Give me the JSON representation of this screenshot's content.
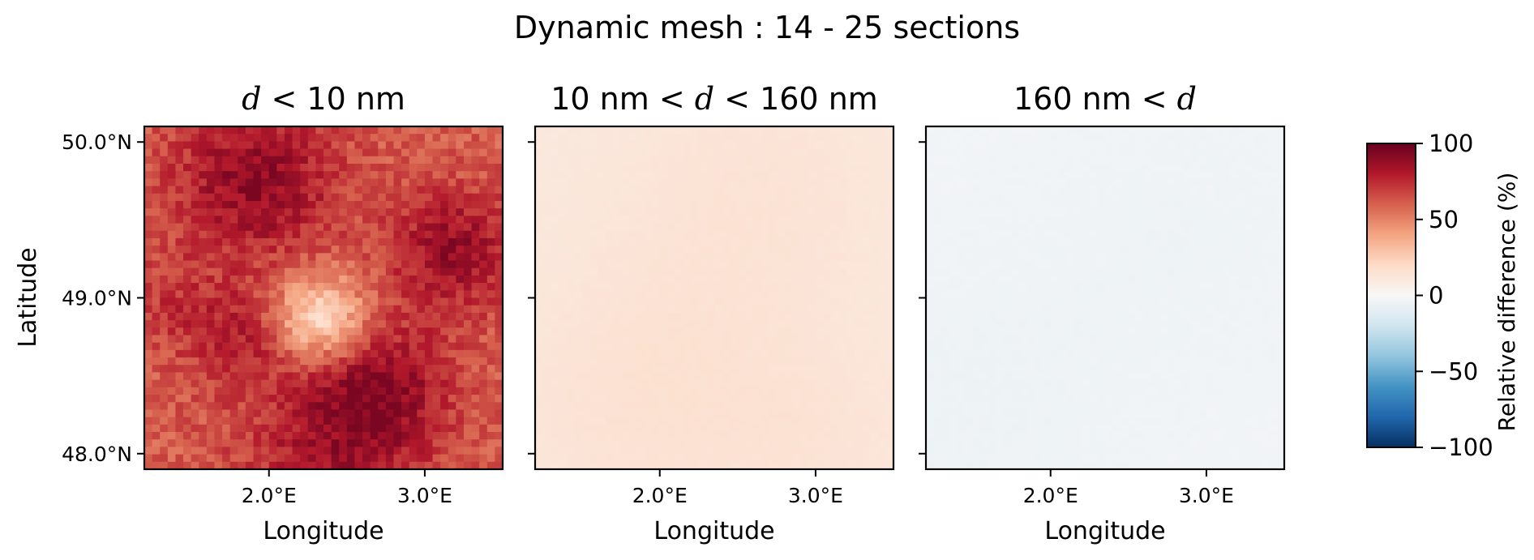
{
  "figure": {
    "title": "Dynamic mesh : 14 - 25 sections",
    "ylabel": "Latitude"
  },
  "colors": {
    "cmap": [
      "#053061",
      "#2166ac",
      "#4393c3",
      "#92c5de",
      "#d1e5f0",
      "#f7f7f7",
      "#fddbc7",
      "#f4a582",
      "#d6604d",
      "#b2182b",
      "#67001f"
    ]
  },
  "colorbar": {
    "label": "Relative difference (%)",
    "ticks": [
      "100",
      "50",
      "0",
      "−50",
      "−100"
    ],
    "tick_values": [
      100,
      50,
      0,
      -50,
      -100
    ],
    "range": [
      -100,
      100
    ]
  },
  "chart_data": [
    {
      "type": "heatmap",
      "title_parts": [
        {
          "t": "d",
          "math": true
        },
        {
          "t": " < ",
          "math": true
        },
        {
          "t": "10 nm",
          "math": false
        }
      ],
      "title": "d < 10 nm",
      "xlabel": "Longitude",
      "ylabel": "Latitude",
      "xlim": [
        1.2,
        3.5
      ],
      "ylim": [
        47.9,
        50.1
      ],
      "xticks": [
        2.0,
        3.0
      ],
      "xtick_labels": [
        "2.0°E",
        "3.0°E"
      ],
      "yticks": [
        48.0,
        49.0,
        50.0
      ],
      "ytick_labels": [
        "48.0°N",
        "49.0°N",
        "50.0°N"
      ],
      "value_range_percent": [
        10,
        95
      ],
      "typical_value_percent": 60,
      "colorscale_range": [
        -100,
        100
      ]
    },
    {
      "type": "heatmap",
      "title_parts": [
        {
          "t": "10 nm",
          "math": false
        },
        {
          "t": " < d < ",
          "math": true
        },
        {
          "t": "160 nm",
          "math": false
        }
      ],
      "title": "10 nm < d < 160 nm",
      "xlabel": "Longitude",
      "xlim": [
        1.2,
        3.5
      ],
      "ylim": [
        47.9,
        50.1
      ],
      "xticks": [
        2.0,
        3.0
      ],
      "xtick_labels": [
        "2.0°E",
        "3.0°E"
      ],
      "yticks": [
        48.0,
        49.0,
        50.0
      ],
      "value_range_percent": [
        4,
        16
      ],
      "typical_value_percent": 10,
      "colorscale_range": [
        -100,
        100
      ]
    },
    {
      "type": "heatmap",
      "title_parts": [
        {
          "t": "160 nm",
          "math": false
        },
        {
          "t": " < d",
          "math": true
        }
      ],
      "title": "160 nm < d",
      "xlabel": "Longitude",
      "xlim": [
        1.2,
        3.5
      ],
      "ylim": [
        47.9,
        50.1
      ],
      "xticks": [
        2.0,
        3.0
      ],
      "xtick_labels": [
        "2.0°E",
        "3.0°E"
      ],
      "yticks": [
        48.0,
        49.0,
        50.0
      ],
      "value_range_percent": [
        -6,
        -1
      ],
      "typical_value_percent": -3,
      "colorscale_range": [
        -100,
        100
      ]
    }
  ]
}
